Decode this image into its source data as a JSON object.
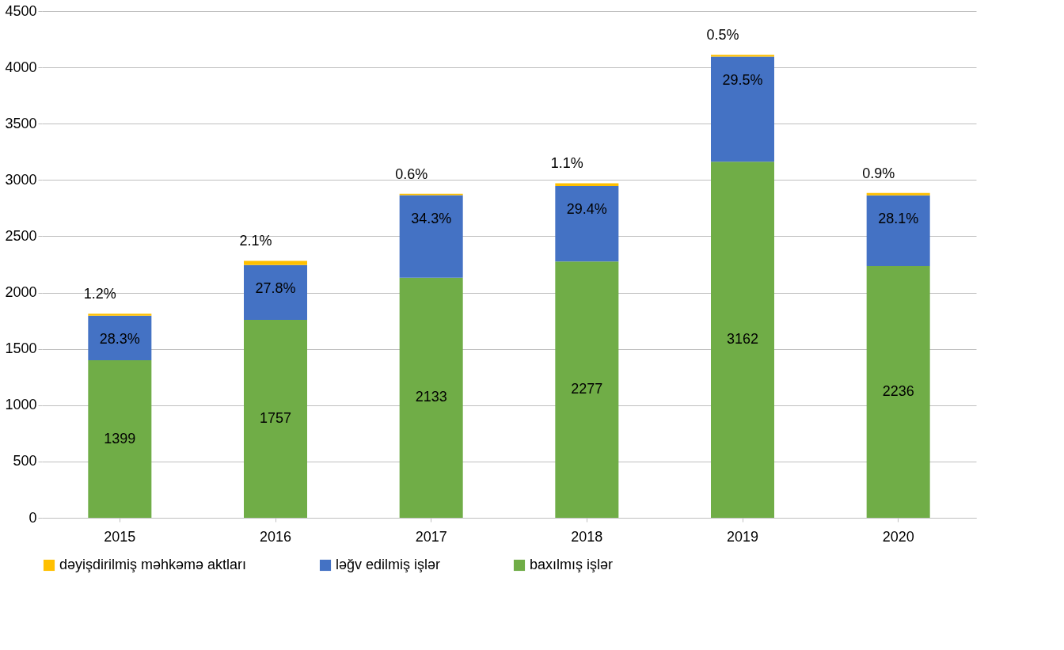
{
  "chart_data": {
    "type": "bar",
    "stacked": true,
    "categories": [
      "2015",
      "2016",
      "2017",
      "2018",
      "2019",
      "2020"
    ],
    "series": [
      {
        "name": "baxılmış işlər",
        "color": "#70ad47",
        "values": [
          1399,
          1757,
          2133,
          2277,
          3162,
          2236
        ],
        "value_labels": [
          "1399",
          "1757",
          "2133",
          "2277",
          "3162",
          "2236"
        ]
      },
      {
        "name": "ləğv edilmiş işlər",
        "color": "#4472c4",
        "values": [
          396,
          488,
          732,
          669,
          933,
          628
        ]
      },
      {
        "name": "dəyişdirilmiş məhkəmə aktları",
        "color": "#ffc000",
        "values": [
          17,
          37,
          13,
          25,
          16,
          20
        ]
      }
    ],
    "annotations": [
      {
        "text": "28.3%",
        "x": "2015",
        "y": 1795
      },
      {
        "text": "27.8%",
        "x": "2016",
        "y": 2245
      },
      {
        "text": "34.3%",
        "x": "2017",
        "y": 2865
      },
      {
        "text": "29.4%",
        "x": "2018",
        "y": 2946
      },
      {
        "text": "29.5%",
        "x": "2019",
        "y": 4095
      },
      {
        "text": "28.1%",
        "x": "2020",
        "y": 2864
      },
      {
        "text": "1.2%",
        "x": "2015",
        "y": 1812
      },
      {
        "text": "2.1%",
        "x": "2016",
        "y": 2282
      },
      {
        "text": "0.6%",
        "x": "2017",
        "y": 2878
      },
      {
        "text": "1.1%",
        "x": "2018",
        "y": 2971
      },
      {
        "text": "0.5%",
        "x": "2019",
        "y": 4111
      },
      {
        "text": "0.9%",
        "x": "2020",
        "y": 2884
      }
    ],
    "ylim": [
      0,
      4500
    ],
    "yticks": [
      0,
      500,
      1000,
      1500,
      2000,
      2500,
      3000,
      3500,
      4000,
      4500
    ],
    "grid": "y",
    "legend": "bottom"
  }
}
